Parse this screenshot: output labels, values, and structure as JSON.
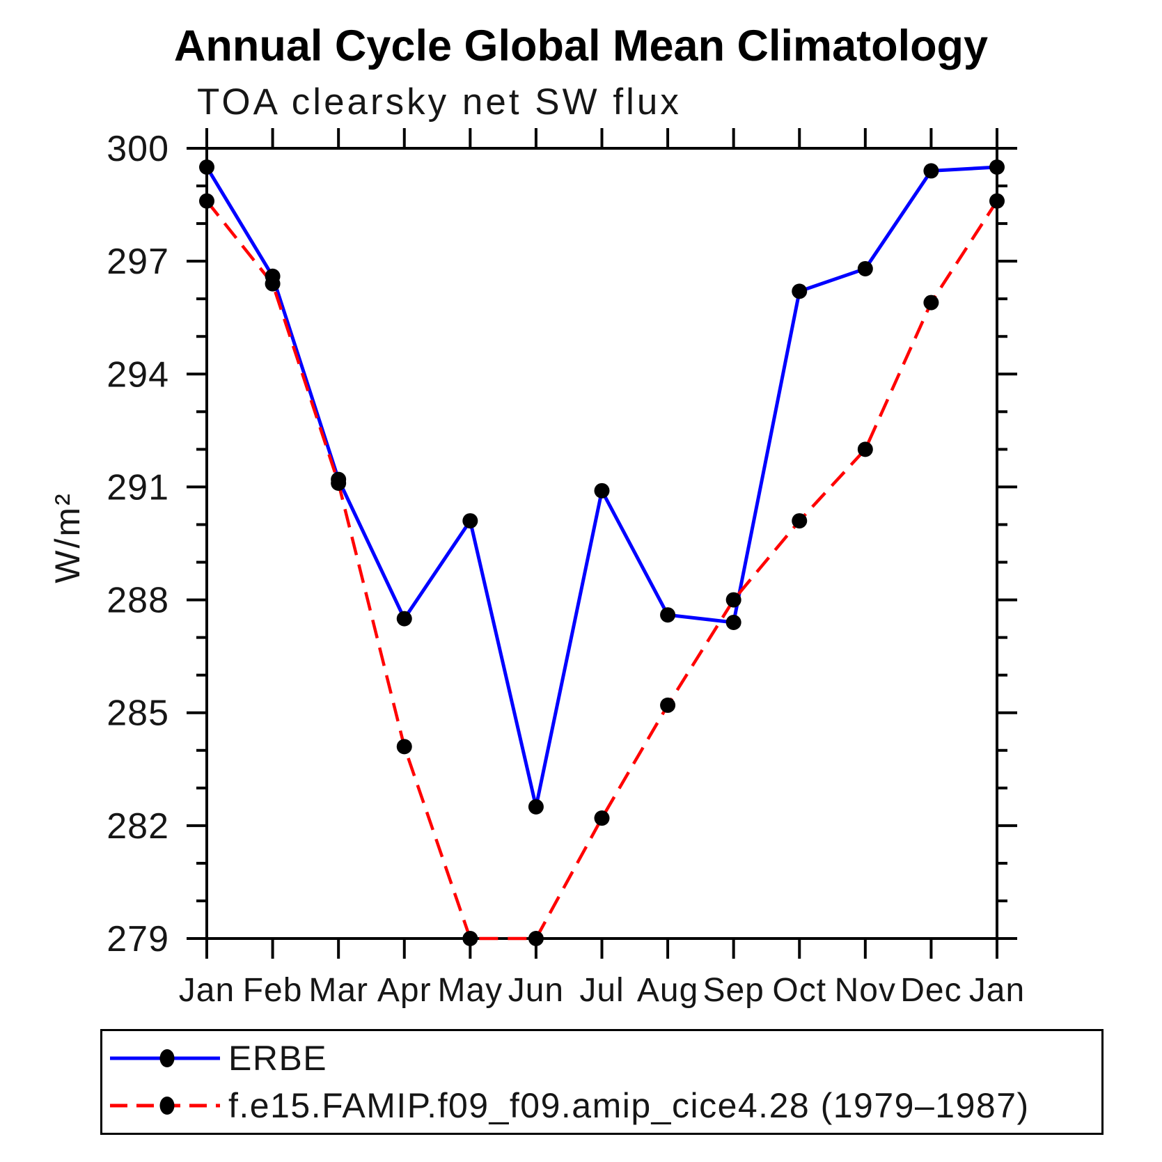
{
  "header": {
    "title": "Annual Cycle Global Mean Climatology",
    "subtitle": "TOA clearsky net SW flux"
  },
  "chart_data": {
    "type": "line",
    "title": "Annual Cycle Global Mean Climatology",
    "subtitle": "TOA clearsky net SW flux",
    "xlabel": "",
    "ylabel": "W/m²",
    "categories": [
      "Jan",
      "Feb",
      "Mar",
      "Apr",
      "May",
      "Jun",
      "Jul",
      "Aug",
      "Sep",
      "Oct",
      "Nov",
      "Dec",
      "Jan"
    ],
    "ylim": [
      279,
      300
    ],
    "yticks_major": [
      279,
      282,
      285,
      288,
      291,
      294,
      297,
      300
    ],
    "ytick_minor_step": 1,
    "grid": false,
    "legend_position": "bottom-left box",
    "series": [
      {
        "name": "ERBE",
        "color": "#0000ff",
        "line_style": "solid",
        "marker": "filled-circle",
        "marker_color": "#000000",
        "values": [
          299.5,
          296.6,
          291.2,
          287.5,
          290.1,
          282.5,
          290.9,
          287.6,
          287.4,
          296.2,
          296.8,
          299.4,
          299.5
        ]
      },
      {
        "name": "f.e15.FAMIP.f09_f09.amip_cice4.28 (1979–1987)",
        "color": "#ff0000",
        "line_style": "dashed",
        "marker": "filled-circle",
        "marker_color": "#000000",
        "values": [
          298.6,
          296.4,
          291.1,
          284.1,
          279.0,
          279.0,
          282.2,
          285.2,
          288.0,
          290.1,
          292.0,
          295.9,
          298.6
        ]
      }
    ]
  },
  "colors": {
    "erbe_line": "#0000ff",
    "model_line": "#ff0000",
    "marker": "#000000",
    "axis": "#000000",
    "background": "#ffffff"
  }
}
